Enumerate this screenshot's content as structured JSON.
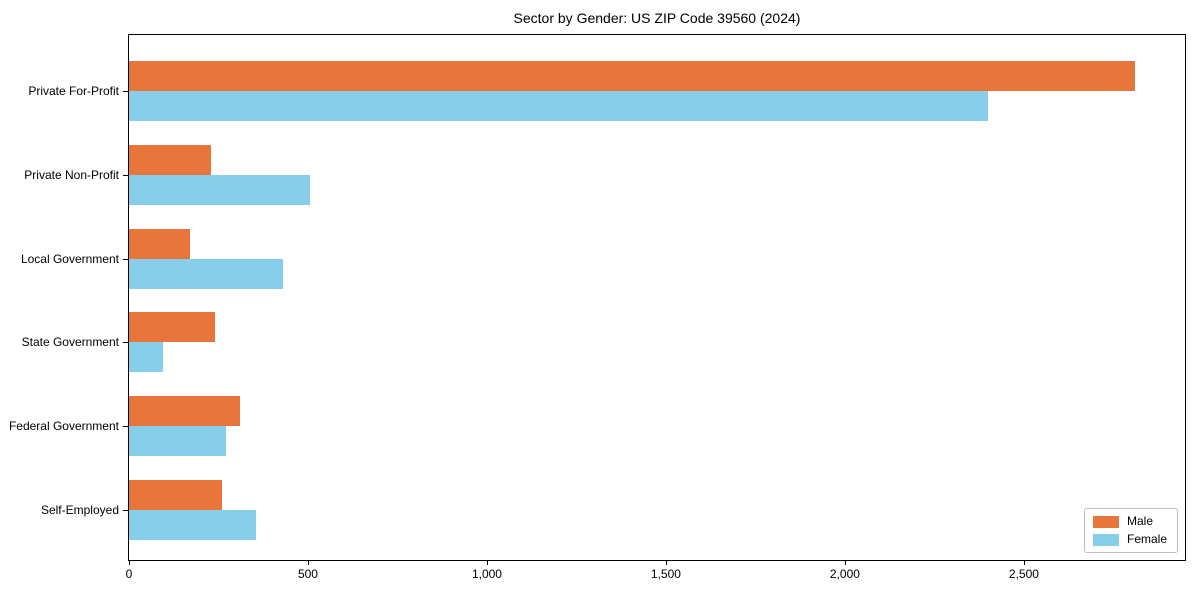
{
  "title": "Sector by Gender: US ZIP Code 39560 (2024)",
  "chart_data": {
    "type": "bar",
    "orientation": "horizontal",
    "title": "Sector by Gender: US ZIP Code 39560 (2024)",
    "categories": [
      "Private For-Profit",
      "Private Non-Profit",
      "Local Government",
      "State Government",
      "Federal Government",
      "Self-Employed"
    ],
    "series": [
      {
        "name": "Male",
        "color": "#e8763c",
        "values": [
          2810,
          230,
          170,
          240,
          310,
          260
        ]
      },
      {
        "name": "Female",
        "color": "#87ceeb",
        "values": [
          2400,
          505,
          430,
          95,
          270,
          355
        ]
      }
    ],
    "xlim": [
      0,
      2950
    ],
    "xticks": [
      0,
      500,
      1000,
      1500,
      2000,
      2500
    ],
    "xtick_labels": [
      "0",
      "500",
      "1,000",
      "1,500",
      "2,000",
      "2,500"
    ],
    "xlabel": "",
    "ylabel": "",
    "grid": false,
    "legend_position": "lower right"
  }
}
